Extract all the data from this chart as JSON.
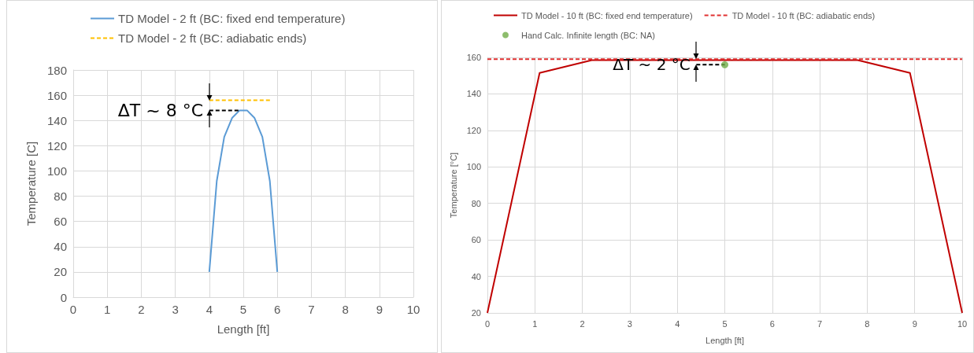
{
  "chart_data": [
    {
      "type": "line",
      "xlabel": "Length [ft]",
      "ylabel": "Temperature [C]",
      "xlim": [
        0,
        10
      ],
      "xticks": [
        0,
        1,
        2,
        3,
        4,
        5,
        6,
        7,
        8,
        9,
        10
      ],
      "ylim": [
        0,
        180
      ],
      "yticks": [
        0,
        20,
        40,
        60,
        80,
        100,
        120,
        140,
        160,
        180
      ],
      "grid": true,
      "legend": "top",
      "marker": "none",
      "annotations": [
        "ΔT ~ 8 °C"
      ],
      "series": [
        {
          "name": "TD Model - 2 ft (BC: fixed end temperature)",
          "color": "#5b9bd5",
          "line_style": "solid",
          "x": [
            4,
            4.22,
            4.44,
            4.67,
            4.89,
            5.11,
            5.33,
            5.56,
            5.78,
            6
          ],
          "values": [
            20,
            92,
            127,
            142,
            148,
            148,
            142,
            127,
            92,
            20
          ]
        },
        {
          "name": "TD Model - 2 ft (BC: adiabatic ends)",
          "color": "#ffc000",
          "line_style": "dashed",
          "x": [
            4,
            5.8
          ],
          "values": [
            156,
            156
          ]
        },
        {
          "color": "#000000",
          "line_style": "dashed",
          "x": [
            4,
            4.9
          ],
          "values": [
            148,
            148
          ]
        }
      ]
    },
    {
      "type": "line",
      "xlabel": "Length [ft]",
      "ylabel": "Temperature [°C]",
      "xlim": [
        0,
        10
      ],
      "xticks": [
        0,
        1,
        2,
        3,
        4,
        5,
        6,
        7,
        8,
        9,
        10
      ],
      "ylim": [
        20,
        160
      ],
      "yticks": [
        20,
        40,
        60,
        80,
        100,
        120,
        140,
        160
      ],
      "grid": true,
      "legend": "top",
      "marker": "none",
      "annotations": [
        "ΔT ~ 2 °C"
      ],
      "series": [
        {
          "name": "TD Model - 10 ft (BC: fixed end temperature)",
          "color": "#c00000",
          "line_style": "solid",
          "x": [
            0,
            1.1,
            2.2,
            7.8,
            8.9,
            10
          ],
          "values": [
            20,
            151.5,
            158.5,
            158.5,
            151.5,
            20
          ]
        },
        {
          "name": "TD Model - 10 ft (BC: adiabatic ends)",
          "color": "#e03030",
          "line_style": "dashed",
          "x": [
            0,
            10
          ],
          "values": [
            159,
            159
          ]
        },
        {
          "color": "#000000",
          "line_style": "dashed",
          "x": [
            4.4,
            5
          ],
          "values": [
            156,
            156
          ]
        },
        {
          "name": "Hand Calc. Infinite length (BC: NA)",
          "type": "scatter",
          "marker": "circle",
          "color": "#70ad47",
          "x": [
            5
          ],
          "values": [
            156
          ]
        }
      ]
    }
  ]
}
